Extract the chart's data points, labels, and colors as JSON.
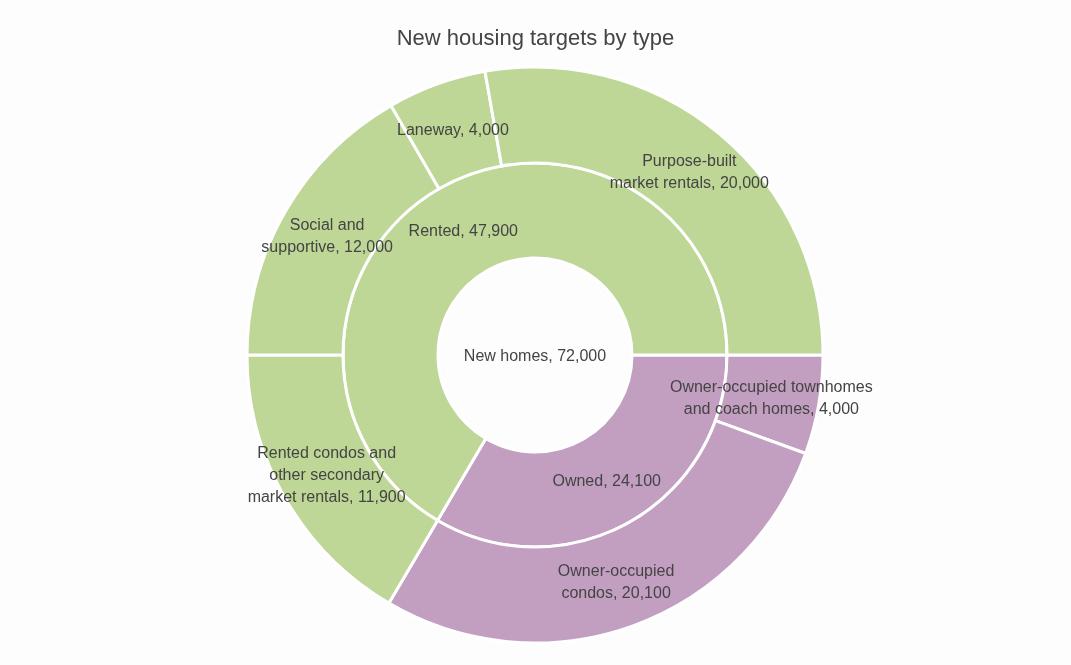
{
  "chart_data": [
    {
      "type": "donut",
      "title": "New housing targets by type",
      "annotations": [
        "New homes, 72,000"
      ],
      "categories": [
        "Owned",
        "Rented"
      ],
      "values": [
        24100,
        47900
      ],
      "value_labels": [
        "24,100",
        "47,900"
      ],
      "colors": [
        "#c29fc0",
        "#bed696"
      ]
    },
    {
      "type": "donut",
      "categories": [
        "Owner-occupied townhomes and coach homes",
        "Owner-occupied condos",
        "Rented condos and other secondary market rentals",
        "Social and supportive",
        "Laneway",
        "Purpose-built market rentals"
      ],
      "values": [
        4000,
        20100,
        11900,
        12000,
        4000,
        20000
      ],
      "value_labels": [
        "4,000",
        "20,100",
        "11,900",
        "12,000",
        "4,000",
        "20,000"
      ],
      "colors": [
        "#c29fc0",
        "#c29fc0",
        "#bed696",
        "#bed696",
        "#bed696",
        "#bed696"
      ]
    }
  ]
}
